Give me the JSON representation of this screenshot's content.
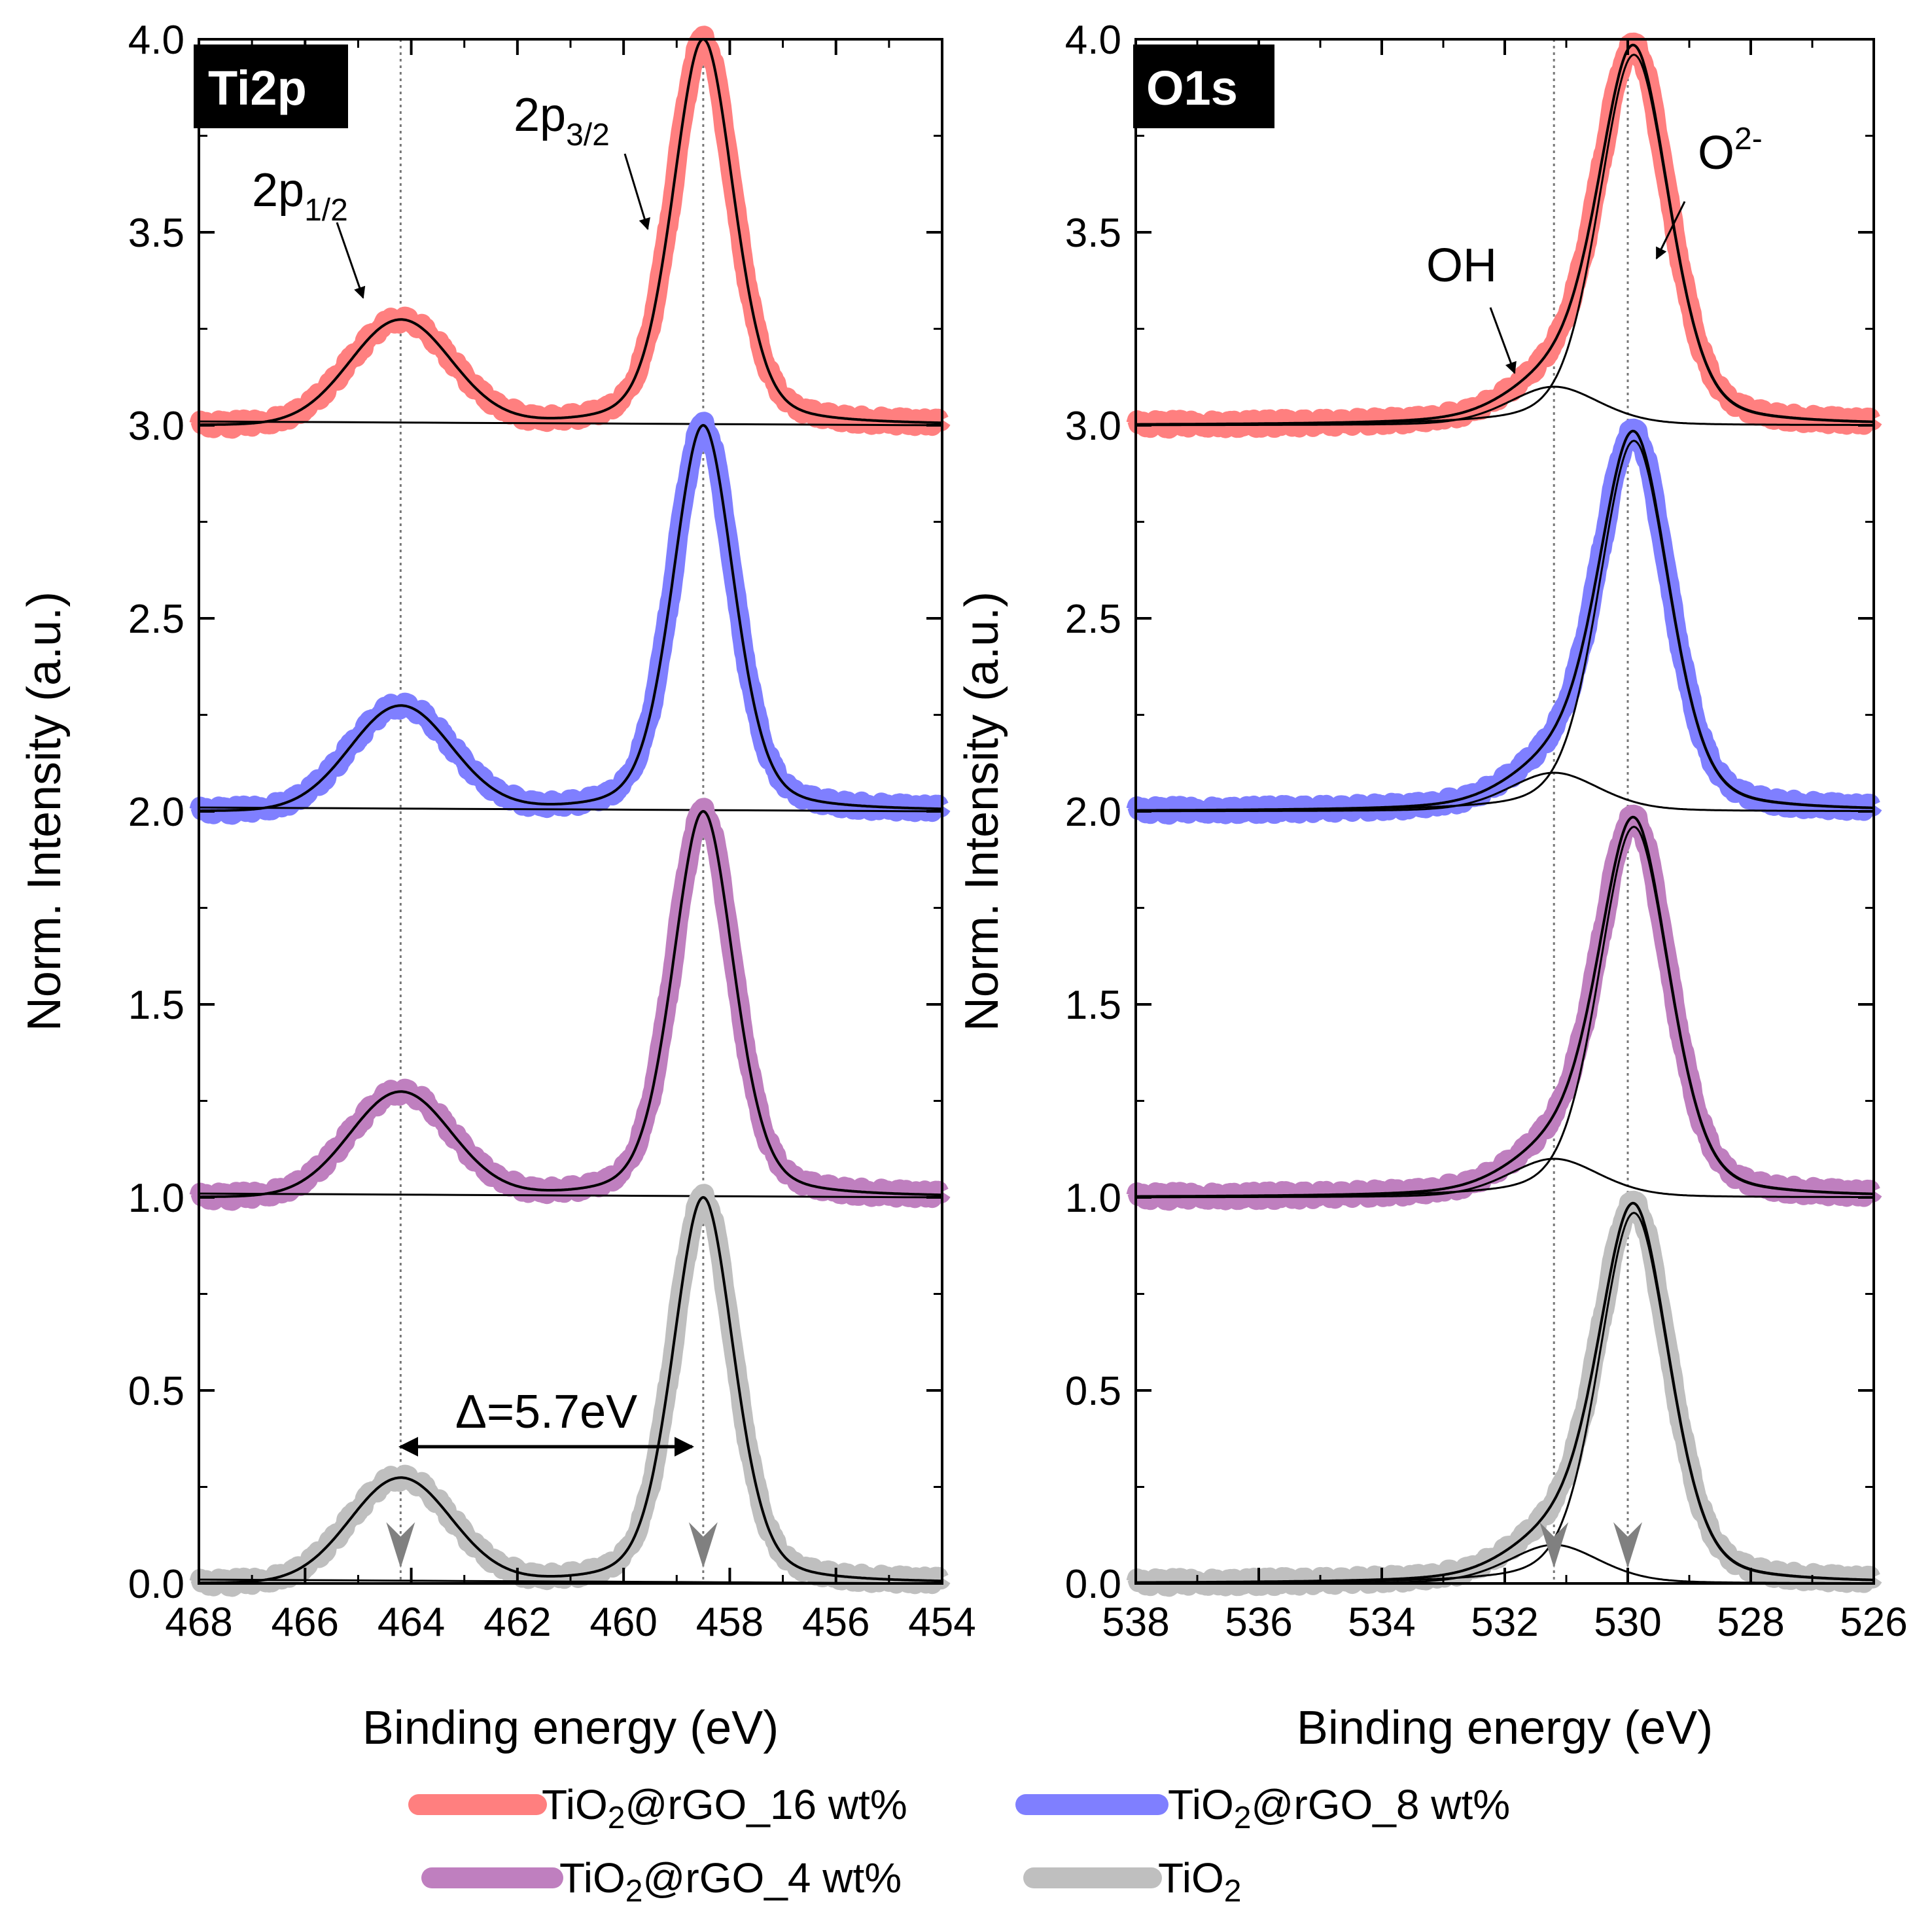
{
  "chart_data": [
    {
      "type": "line",
      "panel": "Ti2p",
      "xlabel": "Binding energy (eV)",
      "ylabel": "Norm. Intensity (a.u.)",
      "xlim": [
        468,
        454
      ],
      "ylim": [
        0,
        4
      ],
      "xticks": [
        "468",
        "466",
        "464",
        "462",
        "460",
        "458",
        "456",
        "454"
      ],
      "yticks": [
        "0.0",
        "0.5",
        "1.0",
        "1.5",
        "2.0",
        "2.5",
        "3.0",
        "3.5",
        "4.0"
      ],
      "peaks_eV": [
        464.2,
        458.5
      ],
      "peak_heights": [
        0.27,
        1.0
      ],
      "reference_lines_eV": [
        464.2,
        458.5
      ],
      "delta_annotation": "Δ=5.7eV",
      "peak_labels": [
        {
          "main": "2p",
          "sub": "1/2"
        },
        {
          "main": "2p",
          "sub": "3/2"
        }
      ],
      "series": [
        {
          "name": "TiO2@rGO_16 wt%",
          "offset": 3.0,
          "color": "#ff7f7f"
        },
        {
          "name": "TiO2@rGO_8 wt%",
          "offset": 2.0,
          "color": "#7f7fff"
        },
        {
          "name": "TiO2@rGO_4 wt%",
          "offset": 1.0,
          "color": "#bf7fbf"
        },
        {
          "name": "TiO2",
          "offset": 0.0,
          "color": "#bfbfbf"
        }
      ]
    },
    {
      "type": "line",
      "panel": "O1s",
      "xlabel": "Binding energy (eV)",
      "ylabel": "Norm. Intensity (a.u.)",
      "xlim": [
        538,
        526
      ],
      "ylim": [
        0,
        4
      ],
      "xticks": [
        "538",
        "536",
        "534",
        "532",
        "530",
        "528",
        "526"
      ],
      "yticks": [
        "0.0",
        "0.5",
        "1.0",
        "1.5",
        "2.0",
        "2.5",
        "3.0",
        "3.5",
        "4.0"
      ],
      "peaks_eV": [
        531.2,
        529.9
      ],
      "peak_heights": [
        0.1,
        0.96
      ],
      "reference_lines_eV": [
        531.2,
        530.0
      ],
      "peak_labels": [
        {
          "main": "OH",
          "sub": ""
        },
        {
          "main": "O",
          "sup": "2-"
        }
      ],
      "series": [
        {
          "name": "TiO2@rGO_16 wt%",
          "offset": 3.0,
          "color": "#ff7f7f"
        },
        {
          "name": "TiO2@rGO_8 wt%",
          "offset": 2.0,
          "color": "#7f7fff"
        },
        {
          "name": "TiO2@rGO_4 wt%",
          "offset": 1.0,
          "color": "#bf7fbf"
        },
        {
          "name": "TiO2",
          "offset": 0.0,
          "color": "#bfbfbf"
        }
      ]
    }
  ],
  "panel_tags": {
    "left": "Ti2p",
    "right": "O1s"
  },
  "legend": [
    {
      "pre": "TiO",
      "sub": "2",
      "post": "@rGO_16 wt%",
      "color": "#ff7f7f"
    },
    {
      "pre": "TiO",
      "sub": "2",
      "post": "@rGO_8 wt%",
      "color": "#7f7fff"
    },
    {
      "pre": "TiO",
      "sub": "2",
      "post": "@rGO_4 wt%",
      "color": "#bf7fbf"
    },
    {
      "pre": "TiO",
      "sub": "2",
      "post": "",
      "color": "#bfbfbf"
    }
  ]
}
